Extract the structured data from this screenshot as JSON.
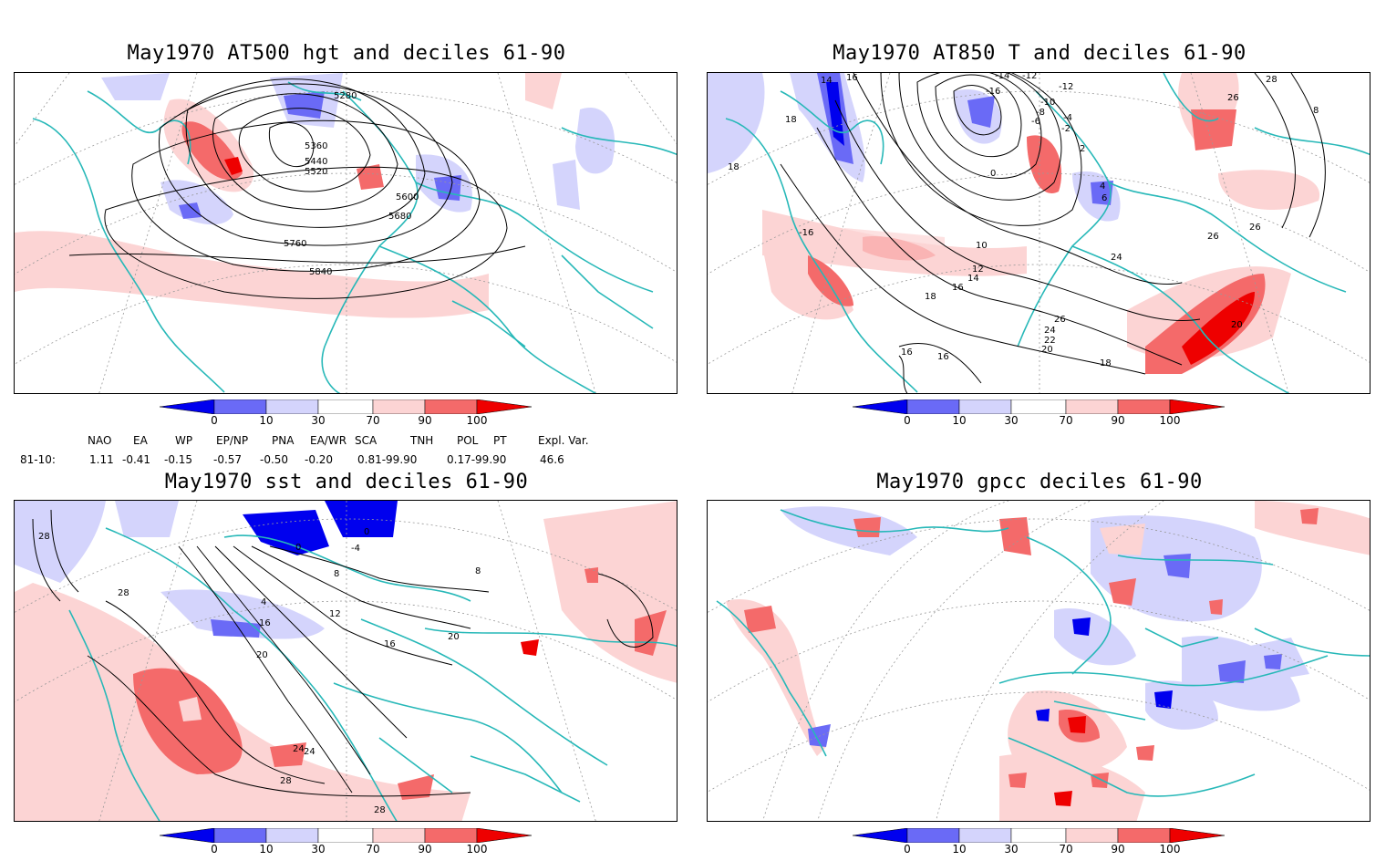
{
  "panels": [
    {
      "title": "May1970 AT500 hgt and deciles 61-90",
      "contour_labels": [
        "5280",
        "5360",
        "5440",
        "5520",
        "5600",
        "5680",
        "5760",
        "5840"
      ]
    },
    {
      "title": "May1970 AT850 T and deciles 61-90",
      "contour_labels": [
        "14",
        "16",
        "-14",
        "-12",
        "28",
        "-16",
        "-12",
        "-10",
        "-8",
        "-6",
        "26",
        "18",
        "-4",
        "-2",
        "0",
        "2",
        "4",
        "6",
        "8",
        "18",
        "-16",
        "10",
        "26",
        "26",
        "24",
        "12",
        "14",
        "16",
        "18",
        "26",
        "24",
        "22",
        "20",
        "20",
        "16",
        "18",
        "16"
      ]
    },
    {
      "title": "May1970 sst and deciles 61-90",
      "contour_labels": [
        "28",
        "24",
        "0",
        "0",
        "-4",
        "8",
        "4",
        "28",
        "12",
        "16",
        "20",
        "16",
        "20",
        "24",
        "28",
        "28",
        "8"
      ]
    },
    {
      "title": "May1970 gpcc deciles 61-90",
      "contour_labels": []
    }
  ],
  "colorbar": {
    "labels": [
      "0",
      "10",
      "30",
      "70",
      "90",
      "100"
    ],
    "colors": [
      "#0000ee",
      "#6a6af6",
      "#d4d4fc",
      "#ffffff",
      "#fcd4d4",
      "#f46a6a",
      "#ee0000"
    ]
  },
  "teleconnections": {
    "headers": [
      "NAO",
      "EA",
      "WP",
      "EP/NP",
      "PNA",
      "EA/WR",
      "SCA",
      "TNH",
      "POL",
      "PT",
      "Expl. Var."
    ],
    "row_label": "81-10:",
    "values": [
      "1.11",
      "-0.41",
      "-0.15",
      "-0.57",
      "-0.50",
      "-0.20",
      "0.81-99.90",
      "0.17-99.90",
      "46.6"
    ]
  },
  "colors": {
    "coast": "#27b8b8",
    "contour": "#000000",
    "grid": "#999999"
  }
}
